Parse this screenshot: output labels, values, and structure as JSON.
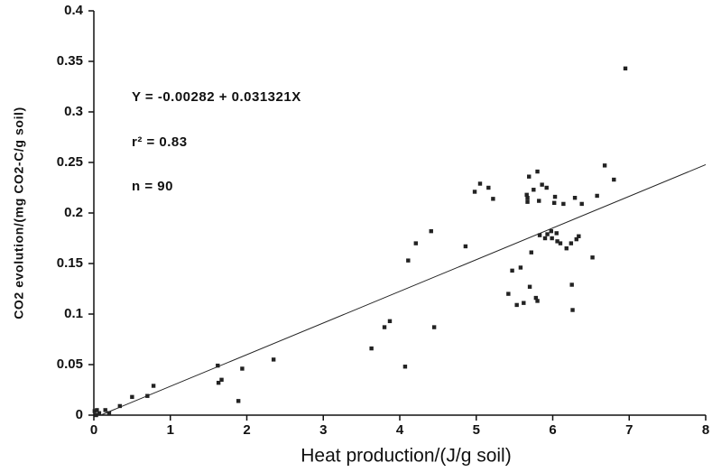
{
  "chart_data": {
    "type": "scatter",
    "x_label": "Heat production/(J/g soil)",
    "y_label": "CO2 evolution/(mg CO2-C/g soil)",
    "annotations": [
      "Y = -0.00282 + 0.031321X",
      "r² = 0.83",
      "n = 90"
    ],
    "x": [
      0.01,
      0.04,
      0.07,
      0.03,
      0.15,
      0.2,
      0.34,
      0.5,
      0.7,
      0.78,
      1.62,
      1.63,
      1.67,
      1.89,
      1.94,
      2.35,
      3.63,
      3.8,
      3.87,
      4.07,
      4.11,
      4.21,
      4.41,
      4.45,
      4.86,
      4.98,
      5.05,
      5.16,
      5.22,
      5.42,
      5.47,
      5.53,
      5.58,
      5.62,
      5.66,
      5.67,
      5.67,
      5.69,
      5.7,
      5.72,
      5.75,
      5.78,
      5.8,
      5.8,
      5.82,
      5.83,
      5.86,
      5.9,
      5.92,
      5.93,
      5.98,
      5.99,
      6.02,
      6.03,
      6.05,
      6.06,
      6.1,
      6.14,
      6.18,
      6.24,
      6.25,
      6.26,
      6.29,
      6.31,
      6.34,
      6.38,
      6.52,
      6.58,
      6.68,
      6.8,
      6.95
    ],
    "values": [
      0.004,
      0.005,
      0.002,
      0.0,
      0.005,
      0.002,
      0.009,
      0.018,
      0.019,
      0.029,
      0.049,
      0.032,
      0.035,
      0.014,
      0.046,
      0.055,
      0.066,
      0.087,
      0.093,
      0.048,
      0.153,
      0.17,
      0.182,
      0.087,
      0.167,
      0.221,
      0.229,
      0.225,
      0.214,
      0.12,
      0.143,
      0.109,
      0.146,
      0.111,
      0.218,
      0.215,
      0.211,
      0.236,
      0.127,
      0.161,
      0.223,
      0.116,
      0.113,
      0.241,
      0.212,
      0.178,
      0.228,
      0.175,
      0.225,
      0.179,
      0.182,
      0.175,
      0.21,
      0.216,
      0.18,
      0.172,
      0.17,
      0.209,
      0.165,
      0.17,
      0.129,
      0.104,
      0.215,
      0.174,
      0.177,
      0.209,
      0.156,
      0.217,
      0.247,
      0.233,
      0.343
    ],
    "color": "#222222",
    "fit_line": {
      "x": [
        0.09,
        8
      ],
      "values": [
        0,
        0.2478
      ]
    },
    "xlim": [
      0,
      8
    ],
    "xticks": [
      0,
      1,
      2,
      3,
      4,
      5,
      6,
      7,
      8
    ],
    "ylim": [
      0,
      0.4
    ],
    "yticks": [
      0,
      0.05,
      0.1,
      0.15,
      0.2,
      0.25,
      0.3,
      0.35,
      0.4
    ],
    "grid": false
  }
}
